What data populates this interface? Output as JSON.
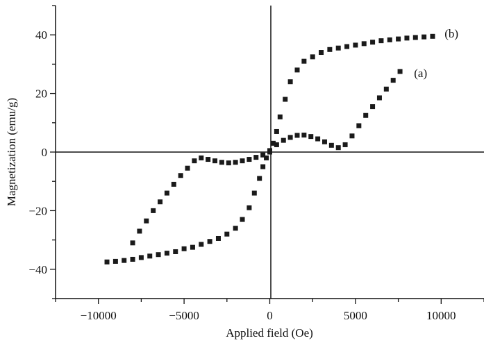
{
  "chart_data": {
    "type": "scatter",
    "title": "",
    "xlabel": "Applied field (Oe)",
    "ylabel": "Magnetization (emu/g)",
    "xlim": [
      -12500,
      12500
    ],
    "ylim": [
      -50,
      50
    ],
    "x_ticks": [
      -10000,
      -5000,
      0,
      5000,
      10000
    ],
    "x_tick_labels": [
      "−10000",
      "−5000",
      "0",
      "5000",
      "10000"
    ],
    "y_ticks": [
      -40,
      -20,
      0,
      20,
      40
    ],
    "y_tick_labels": [
      "−40",
      "−20",
      "0",
      "20",
      "40"
    ],
    "grid": false,
    "legend": "none",
    "marker_color": "#1a1a1a",
    "series": [
      {
        "name": "(a)",
        "x": [
          -8000,
          -7600,
          -7200,
          -6800,
          -6400,
          -6000,
          -5600,
          -5200,
          -4800,
          -4400,
          -4000,
          -3600,
          -3200,
          -2800,
          -2400,
          -2000,
          -1600,
          -1200,
          -800,
          -400,
          0,
          400,
          800,
          1200,
          1600,
          2000,
          2400,
          2800,
          3200,
          3600,
          4000,
          4400,
          4800,
          5200,
          5600,
          6000,
          6400,
          6800,
          7200,
          7600
        ],
        "y": [
          -31,
          -27,
          -23.5,
          -20,
          -17,
          -14,
          -11,
          -8,
          -5.5,
          -3,
          -2,
          -2.5,
          -3,
          -3.5,
          -3.7,
          -3.5,
          -3,
          -2.5,
          -1.8,
          -1,
          0.5,
          2.5,
          4,
          5,
          5.7,
          5.8,
          5.3,
          4.5,
          3.5,
          2.3,
          1.5,
          2.5,
          5.5,
          9,
          12.5,
          15.5,
          18.5,
          21.5,
          24.5,
          27.5
        ]
      },
      {
        "name": "(b)",
        "x": [
          -9500,
          -9000,
          -8500,
          -8000,
          -7500,
          -7000,
          -6500,
          -6000,
          -5500,
          -5000,
          -4500,
          -4000,
          -3500,
          -3000,
          -2500,
          -2000,
          -1600,
          -1200,
          -900,
          -600,
          -400,
          -200,
          0,
          200,
          400,
          600,
          900,
          1200,
          1600,
          2000,
          2500,
          3000,
          3500,
          4000,
          4500,
          5000,
          5500,
          6000,
          6500,
          7000,
          7500,
          8000,
          8500,
          9000,
          9500
        ],
        "y": [
          -37.5,
          -37.3,
          -37,
          -36.6,
          -36,
          -35.5,
          -35,
          -34.5,
          -34,
          -33,
          -32.5,
          -31.5,
          -30.5,
          -29.5,
          -28,
          -26,
          -23,
          -19,
          -14,
          -9,
          -5,
          -2,
          0,
          3,
          7,
          12,
          18,
          24,
          28,
          31,
          32.5,
          34,
          35,
          35.5,
          36,
          36.5,
          37,
          37.5,
          38,
          38.3,
          38.6,
          38.9,
          39.1,
          39.3,
          39.5
        ]
      }
    ],
    "series_labels": [
      {
        "text": "(b)",
        "x": 10600,
        "y": 40.5
      },
      {
        "text": "(a)",
        "x": 8800,
        "y": 27
      }
    ]
  }
}
